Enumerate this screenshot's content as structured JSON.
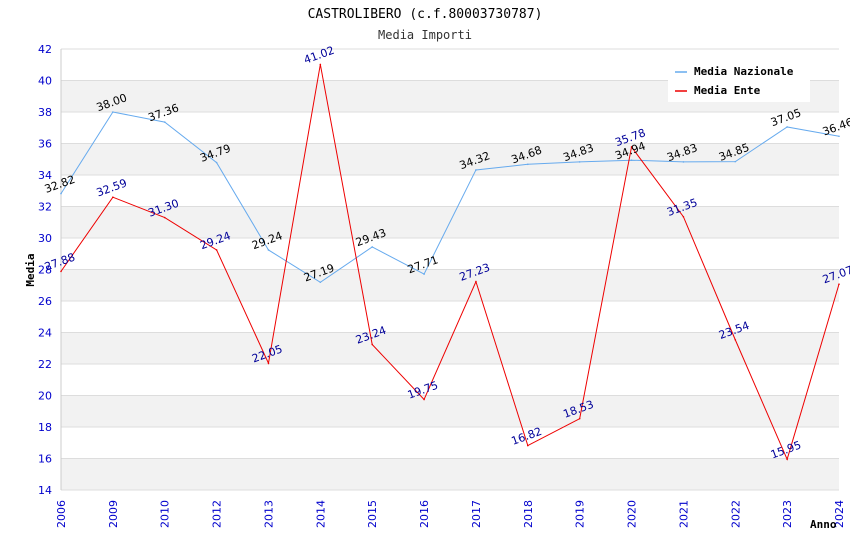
{
  "chart_data": {
    "type": "line",
    "title": "CASTROLIBERO (c.f.80003730787)",
    "subtitle": "Media Importi",
    "xlabel": "Anno",
    "ylabel": "Media",
    "categories": [
      "2006",
      "2009",
      "2010",
      "2012",
      "2013",
      "2014",
      "2015",
      "2016",
      "2017",
      "2018",
      "2019",
      "2020",
      "2021",
      "2022",
      "2023",
      "2024"
    ],
    "ylim": [
      14,
      42
    ],
    "yticks": [
      14,
      16,
      18,
      20,
      22,
      24,
      26,
      28,
      30,
      32,
      34,
      36,
      38,
      40,
      42
    ],
    "grid": "horizontal alternating bands",
    "legend_position": "top-right",
    "series": [
      {
        "name": "Media Nazionale",
        "color": "#66aaee",
        "values": [
          32.82,
          38.0,
          37.36,
          34.79,
          29.24,
          27.19,
          29.43,
          27.71,
          34.32,
          34.68,
          34.83,
          34.94,
          34.83,
          34.85,
          37.05,
          36.46
        ],
        "labels": [
          "32.82",
          "38.00",
          "37.36",
          "34.79",
          "29.24",
          "27.19",
          "29.43",
          "27.71",
          "34.32",
          "34.68",
          "34.83",
          "34.94",
          "34.83",
          "34.85",
          "37.05",
          "36.46"
        ]
      },
      {
        "name": "Media Ente",
        "color": "#ee0000",
        "values": [
          27.88,
          32.59,
          31.3,
          29.24,
          22.05,
          41.02,
          23.24,
          19.75,
          27.23,
          16.82,
          18.53,
          35.78,
          31.35,
          23.54,
          15.95,
          27.07
        ],
        "labels": [
          "27.88",
          "32.59",
          "31.30",
          "29.24",
          "22.05",
          "41.02",
          "23.24",
          "19.75",
          "27.23",
          "16.82",
          "18.53",
          "35.78",
          "31.35",
          "23.54",
          "15.95",
          "27.07"
        ]
      }
    ]
  }
}
